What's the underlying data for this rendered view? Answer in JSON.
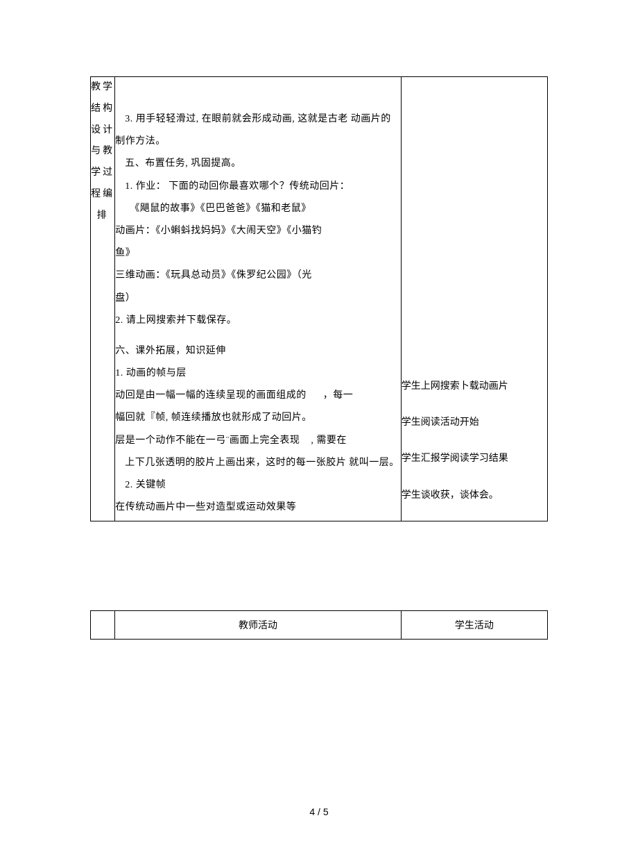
{
  "leftLabel": "教学结构设计与教学过程编排",
  "mainContent": {
    "line1": "3. 用手轻轻滑过, 在眼前就会形成动画, 这就是古老 动画片的制作方法。",
    "line2": "五、布置任务, 巩固提高。",
    "line3": "1. 作业： 下面的动回你最喜欢哪个？传统动回片：",
    "line4": "《飓鼠的故事》《巴巴爸爸》《猫和老鼠》",
    "line5": "动画片：《小蝌蚪找妈妈》《大闹天空》《小猫钓",
    "line6": "鱼》",
    "line7": "三维动画：《玩具总动员》《侏罗纪公园》（光",
    "line8": "盘）",
    "line9": "2. 请上网搜索并下载保存。",
    "line10": "六、课外拓展，知识延伸",
    "line11": "1. 动画的帧与层",
    "line12a": "动回是由一幅一幅的连续呈现的画面组成的",
    "line12b": "，每一",
    "line13": "幅回就『帧, 帧连续播放也就形成了动回片。",
    "line14a": "层是一个动作不能在一弓¨画面上完全表现",
    "line14b": ", 需要在",
    "line15": "上下几张透明的胶片上画出来，这时的每一张胶片 就叫一层。",
    "line16": "2. 关键帧",
    "line17": "在传统动画片中一些对造型或运动效果等"
  },
  "rightContent": {
    "r1": "学生上网搜索卜载动画片",
    "r2": "学生阅读活动开始",
    "r3": "学生汇报学阅读学习结果",
    "r4": "学生谈收获，谈体会。"
  },
  "bottomHeader": {
    "teacher": "教师活动",
    "student": "学生活动"
  },
  "pageNumber": "4 / 5"
}
